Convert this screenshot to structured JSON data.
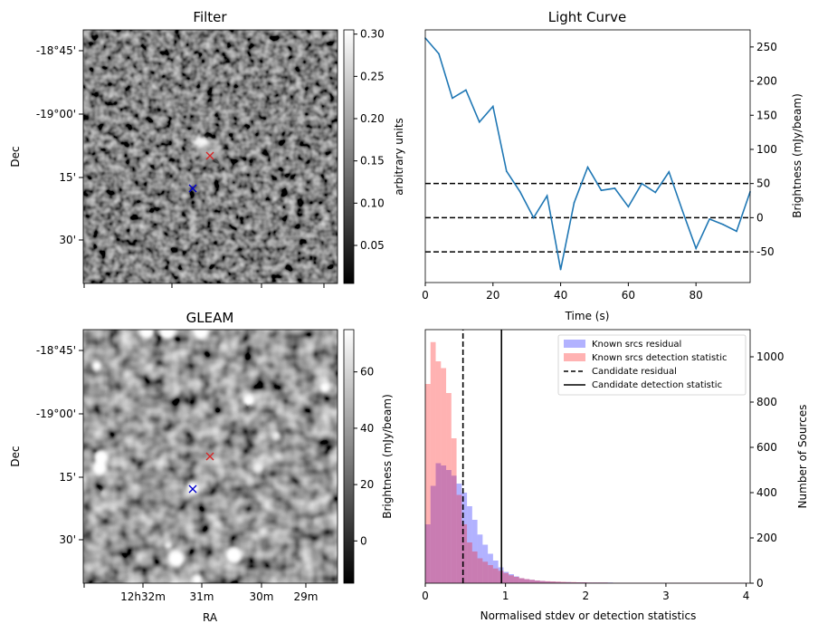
{
  "chart_data": [
    {
      "type": "heatmap",
      "title": "Filter",
      "ylabel": "Dec",
      "yticks": [
        "-18°45'",
        "-19°00'",
        "15'",
        "30'"
      ],
      "colorbar": {
        "label": "arbitrary units",
        "ticks": [
          0.05,
          0.1,
          0.15,
          0.2,
          0.25,
          0.3
        ],
        "tick_labels": [
          "0.05",
          "0.10",
          "0.15",
          "0.20",
          "0.25",
          "0.30"
        ],
        "range": [
          0.005,
          0.305
        ],
        "colormap": "gray"
      },
      "markers": [
        {
          "symbol": "x",
          "color": "#d62728"
        },
        {
          "symbol": "x",
          "color": "#0000cc"
        }
      ]
    },
    {
      "type": "line",
      "title": "Light Curve",
      "xlabel": "Time (s)",
      "ylabel": "Brightness (mJy/beam)",
      "xlim": [
        0,
        96
      ],
      "ylim": [
        -95,
        275
      ],
      "xticks": [
        0,
        20,
        40,
        60,
        80
      ],
      "yticks": [
        -50,
        0,
        50,
        100,
        150,
        200,
        250
      ],
      "ytick_side": "right",
      "series": [
        {
          "color": "#1f77b4",
          "x": [
            0,
            4,
            8,
            12,
            16,
            20,
            24,
            28,
            32,
            36,
            40,
            44,
            48,
            52,
            56,
            60,
            64,
            68,
            72,
            76,
            80,
            84,
            88,
            92,
            96
          ],
          "y": [
            263,
            240,
            175,
            187,
            140,
            163,
            68,
            38,
            0,
            32,
            -76,
            22,
            74,
            40,
            43,
            16,
            50,
            37,
            67,
            10,
            -45,
            -2,
            -10,
            -20,
            38
          ]
        }
      ],
      "hlines": [
        {
          "y": 50,
          "style": "dashed",
          "color": "#000000"
        },
        {
          "y": 0,
          "style": "dashed",
          "color": "#000000"
        },
        {
          "y": -50,
          "style": "dashed",
          "color": "#000000"
        }
      ]
    },
    {
      "type": "heatmap",
      "title": "GLEAM",
      "xlabel": "RA",
      "ylabel": "Dec",
      "xticks": [
        "12h32m",
        "31m",
        "30m",
        "29m"
      ],
      "yticks": [
        "-18°45'",
        "-19°00'",
        "15'",
        "30'"
      ],
      "colorbar": {
        "label": "Brightness (mJy/beam)",
        "ticks": [
          0,
          20,
          40,
          60
        ],
        "tick_labels": [
          "0",
          "20",
          "40",
          "60"
        ],
        "range": [
          -15,
          75
        ],
        "colormap": "gray"
      },
      "markers": [
        {
          "symbol": "x",
          "color": "#d62728"
        },
        {
          "symbol": "x",
          "color": "#0000cc"
        }
      ]
    },
    {
      "type": "bar",
      "subtype": "histogram",
      "xlabel": "Normalised stdev or detection statistics",
      "ylabel": "Number of Sources",
      "ytick_side": "right",
      "xlim": [
        0,
        4.05
      ],
      "ylim": [
        0,
        1120
      ],
      "xticks": [
        0,
        1,
        2,
        3,
        4
      ],
      "yticks": [
        0,
        200,
        400,
        600,
        800,
        1000
      ],
      "bin_width": 0.065,
      "series": [
        {
          "name": "Known srcs residual",
          "color": "#0000ff",
          "opacity": 0.3,
          "values": [
            260,
            430,
            530,
            520,
            500,
            475,
            440,
            400,
            340,
            280,
            215,
            170,
            130,
            100,
            70,
            50,
            40,
            30,
            22,
            18,
            15,
            12,
            10,
            8,
            7,
            6,
            5,
            5,
            4,
            4,
            4,
            3,
            3,
            3,
            3,
            3,
            2,
            2,
            2,
            2,
            2,
            2,
            2,
            2,
            2,
            2,
            2,
            2,
            2,
            2,
            2,
            2,
            2,
            2,
            2,
            2,
            2,
            2,
            2,
            2,
            2,
            2
          ]
        },
        {
          "name": "Known srcs detection statistic",
          "color": "#ff0000",
          "opacity": 0.3,
          "values": [
            880,
            1065,
            980,
            950,
            840,
            640,
            390,
            260,
            180,
            140,
            110,
            95,
            80,
            65,
            55,
            45,
            35,
            28,
            22,
            18,
            15,
            12,
            10,
            9,
            8,
            7,
            6,
            5,
            5,
            4,
            4,
            3,
            3,
            3,
            3,
            2,
            2,
            2,
            2,
            2,
            2,
            2,
            2,
            2,
            2,
            2,
            2,
            2,
            2,
            2,
            2,
            2,
            2,
            2,
            2,
            2,
            2,
            2,
            2,
            2,
            2,
            2
          ]
        }
      ],
      "vlines": [
        {
          "name": "Candidate residual",
          "x": 0.47,
          "style": "dashed",
          "color": "#000000"
        },
        {
          "name": "Candidate detection statistic",
          "x": 0.95,
          "style": "solid",
          "color": "#000000"
        }
      ],
      "legend": "top-right"
    }
  ]
}
